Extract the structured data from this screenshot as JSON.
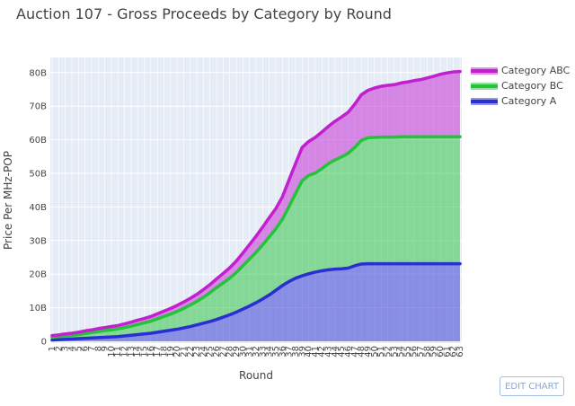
{
  "chart_data": {
    "type": "area",
    "title": "Auction 107 - Gross Proceeds by Category by Round",
    "xlabel": "Round",
    "ylabel": "Price Per MHz-POP",
    "x_range": [
      1,
      63
    ],
    "ylim": [
      0,
      85
    ],
    "y_unit": "billions",
    "y_ticks": [
      0,
      10,
      20,
      30,
      40,
      50,
      60,
      70,
      80
    ],
    "y_tick_labels": [
      "0",
      "10B",
      "20B",
      "30B",
      "40B",
      "50B",
      "60B",
      "70B",
      "80B"
    ],
    "x_ticks": [
      1,
      2,
      3,
      4,
      5,
      6,
      7,
      8,
      9,
      10,
      11,
      12,
      13,
      14,
      15,
      16,
      17,
      18,
      19,
      20,
      21,
      22,
      23,
      24,
      25,
      26,
      27,
      28,
      29,
      30,
      31,
      32,
      33,
      34,
      35,
      36,
      37,
      38,
      39,
      40,
      41,
      42,
      43,
      44,
      45,
      46,
      47,
      48,
      49,
      50,
      51,
      52,
      53,
      54,
      55,
      56,
      57,
      58,
      59,
      60,
      61,
      62,
      63
    ],
    "stacked": true,
    "grid": true,
    "legend_position": "top-right",
    "series": [
      {
        "name": "Category A",
        "color": "#2a2fd0",
        "values": [
          0.4,
          0.5,
          0.6,
          0.7,
          0.8,
          0.9,
          1.0,
          1.1,
          1.2,
          1.3,
          1.4,
          1.6,
          1.8,
          2.0,
          2.2,
          2.4,
          2.7,
          3.0,
          3.3,
          3.6,
          4.0,
          4.4,
          4.9,
          5.4,
          5.9,
          6.5,
          7.2,
          7.9,
          8.7,
          9.6,
          10.5,
          11.5,
          12.6,
          13.8,
          15.2,
          16.6,
          17.8,
          18.8,
          19.5,
          20.1,
          20.6,
          21.0,
          21.3,
          21.5,
          21.6,
          21.8,
          22.5,
          23.0,
          23.1,
          23.1,
          23.1,
          23.1,
          23.1,
          23.1,
          23.1,
          23.1,
          23.1,
          23.1,
          23.1,
          23.1,
          23.1,
          23.1,
          23.1
        ]
      },
      {
        "name": "Category BC",
        "color": "#25c23a",
        "values": [
          0.8,
          0.9,
          1.0,
          1.1,
          1.2,
          1.4,
          1.6,
          1.8,
          2.0,
          2.1,
          2.3,
          2.5,
          2.7,
          3.0,
          3.3,
          3.6,
          4.0,
          4.4,
          4.8,
          5.3,
          5.8,
          6.4,
          7.0,
          7.7,
          8.6,
          9.5,
          10.2,
          10.9,
          11.8,
          12.9,
          14.0,
          15.0,
          16.1,
          17.3,
          18.3,
          19.7,
          22.3,
          25.2,
          28.3,
          29.3,
          29.5,
          30.4,
          31.6,
          32.5,
          33.3,
          34.2,
          35.2,
          36.8,
          37.5,
          37.6,
          37.7,
          37.7,
          37.7,
          37.8,
          37.8,
          37.8,
          37.8,
          37.8,
          37.8,
          37.8,
          37.8,
          37.8,
          37.8
        ]
      },
      {
        "name": "Category ABC",
        "color": "#c21fcf",
        "values": [
          0.5,
          0.5,
          0.6,
          0.6,
          0.7,
          0.8,
          0.8,
          0.9,
          0.9,
          1.0,
          1.0,
          1.1,
          1.2,
          1.3,
          1.3,
          1.4,
          1.5,
          1.6,
          1.7,
          1.8,
          1.9,
          2.0,
          2.1,
          2.3,
          2.4,
          2.6,
          2.8,
          3.1,
          3.4,
          3.8,
          4.3,
          4.8,
          5.3,
          5.7,
          6.0,
          6.7,
          7.9,
          8.9,
          9.9,
          10.1,
          10.6,
          10.9,
          11.1,
          11.5,
          11.9,
          12.2,
          12.9,
          13.6,
          14.1,
          14.7,
          15.1,
          15.4,
          15.6,
          16.0,
          16.3,
          16.7,
          17.0,
          17.5,
          18.0,
          18.6,
          19.0,
          19.3,
          19.4
        ]
      }
    ]
  },
  "legend": {
    "items": [
      {
        "label": "Category ABC",
        "color": "#c21fcf"
      },
      {
        "label": "Category BC",
        "color": "#25c23a"
      },
      {
        "label": "Category A",
        "color": "#2a2fd0"
      }
    ]
  },
  "edit_chart_label": "EDIT CHART"
}
